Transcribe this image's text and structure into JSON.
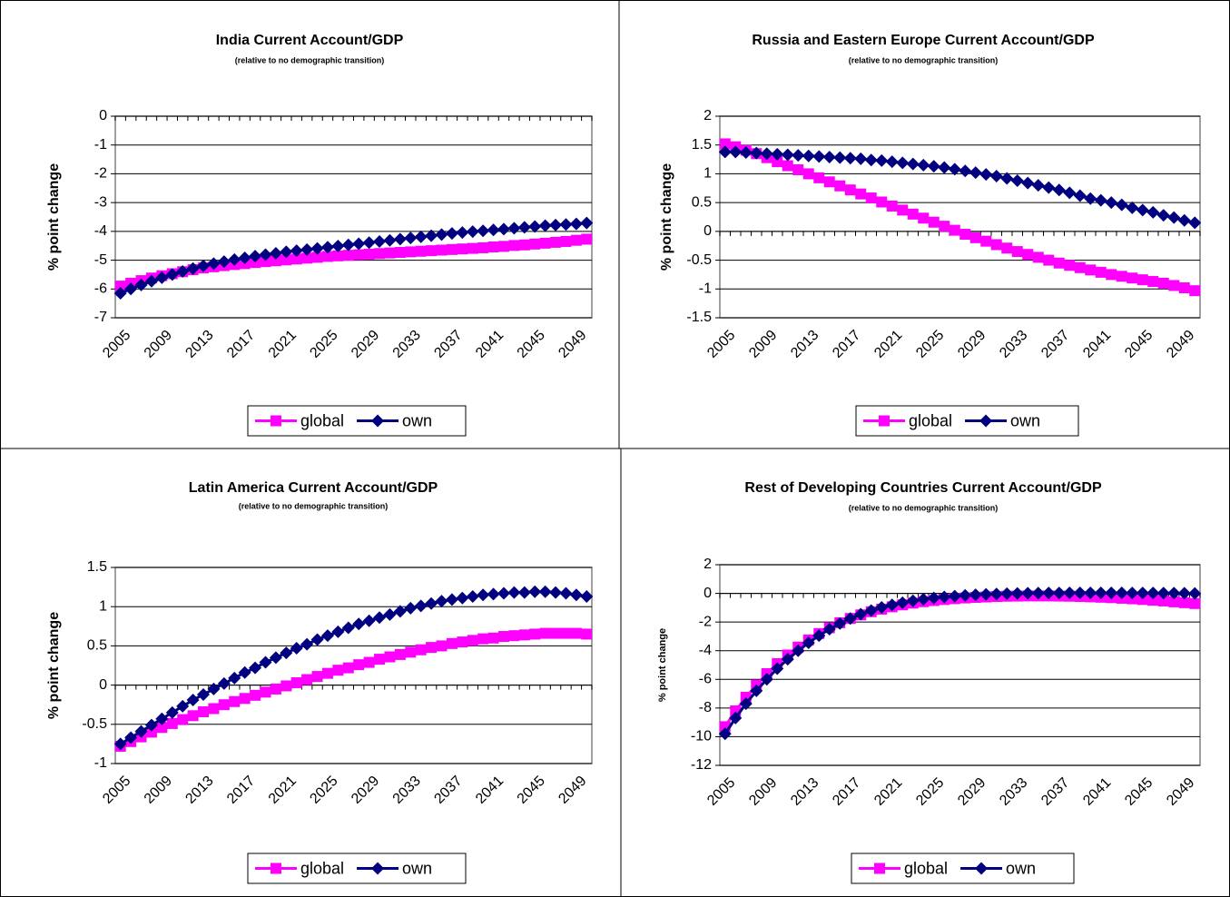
{
  "chart_data": [
    {
      "type": "line",
      "title": "India Current Account/GDP",
      "subtitle": "(relative to no demographic transition)",
      "y_label": "% point change",
      "categories": [
        "2005",
        null,
        null,
        null,
        "2009",
        null,
        null,
        null,
        "2013",
        null,
        null,
        null,
        "2017",
        null,
        null,
        null,
        "2021",
        null,
        null,
        null,
        "2025",
        null,
        null,
        null,
        "2029",
        null,
        null,
        null,
        "2033",
        null,
        null,
        null,
        "2037",
        null,
        null,
        null,
        "2041",
        null,
        null,
        null,
        "2045",
        null,
        null,
        null,
        "2049",
        null
      ],
      "ylim": [
        -7,
        0
      ],
      "yticks": [
        -7,
        -6,
        -5,
        -4,
        -3,
        -2,
        -1,
        0
      ],
      "grid": true,
      "legend": "bottom",
      "series": [
        {
          "name": "global",
          "color": "#FF00FF",
          "marker": "square",
          "values": [
            -5.9,
            -5.8,
            -5.71,
            -5.62,
            -5.54,
            -5.47,
            -5.4,
            -5.33,
            -5.27,
            -5.23,
            -5.19,
            -5.15,
            -5.12,
            -5.08,
            -5.05,
            -5.02,
            -4.99,
            -4.96,
            -4.93,
            -4.9,
            -4.87,
            -4.85,
            -4.83,
            -4.81,
            -4.79,
            -4.77,
            -4.75,
            -4.73,
            -4.71,
            -4.69,
            -4.67,
            -4.65,
            -4.63,
            -4.61,
            -4.59,
            -4.57,
            -4.54,
            -4.52,
            -4.49,
            -4.47,
            -4.44,
            -4.41,
            -4.38,
            -4.35,
            -4.31,
            -4.27
          ]
        },
        {
          "name": "own",
          "color": "#000080",
          "marker": "diamond",
          "values": [
            -6.15,
            -6.0,
            -5.86,
            -5.73,
            -5.61,
            -5.5,
            -5.39,
            -5.29,
            -5.2,
            -5.12,
            -5.05,
            -4.98,
            -4.92,
            -4.86,
            -4.81,
            -4.76,
            -4.71,
            -4.67,
            -4.63,
            -4.59,
            -4.55,
            -4.51,
            -4.47,
            -4.43,
            -4.39,
            -4.35,
            -4.31,
            -4.27,
            -4.23,
            -4.19,
            -4.15,
            -4.11,
            -4.07,
            -4.04,
            -4.01,
            -3.98,
            -3.95,
            -3.92,
            -3.89,
            -3.86,
            -3.83,
            -3.8,
            -3.78,
            -3.76,
            -3.74,
            -3.71
          ]
        }
      ]
    },
    {
      "type": "line",
      "title": "Russia and Eastern Europe Current Account/GDP",
      "subtitle": "(relative to no demographic transition)",
      "y_label": "% point change",
      "categories": [
        "2005",
        null,
        null,
        null,
        "2009",
        null,
        null,
        null,
        "2013",
        null,
        null,
        null,
        "2017",
        null,
        null,
        null,
        "2021",
        null,
        null,
        null,
        "2025",
        null,
        null,
        null,
        "2029",
        null,
        null,
        null,
        "2033",
        null,
        null,
        null,
        "2037",
        null,
        null,
        null,
        "2041",
        null,
        null,
        null,
        "2045",
        null,
        null,
        null,
        "2049",
        null
      ],
      "ylim": [
        -1.5,
        2
      ],
      "yticks": [
        -1.5,
        -1,
        -0.5,
        0,
        0.5,
        1,
        1.5,
        2
      ],
      "grid": true,
      "legend": "bottom",
      "series": [
        {
          "name": "global",
          "color": "#FF00FF",
          "marker": "square",
          "values": [
            1.52,
            1.47,
            1.41,
            1.35,
            1.28,
            1.21,
            1.14,
            1.07,
            1.0,
            0.93,
            0.86,
            0.79,
            0.72,
            0.65,
            0.58,
            0.51,
            0.44,
            0.37,
            0.3,
            0.23,
            0.16,
            0.09,
            0.02,
            -0.05,
            -0.11,
            -0.17,
            -0.23,
            -0.29,
            -0.35,
            -0.4,
            -0.45,
            -0.5,
            -0.55,
            -0.59,
            -0.63,
            -0.67,
            -0.71,
            -0.75,
            -0.78,
            -0.81,
            -0.84,
            -0.87,
            -0.9,
            -0.94,
            -0.98,
            -1.03
          ]
        },
        {
          "name": "own",
          "color": "#000080",
          "marker": "diamond",
          "values": [
            1.38,
            1.38,
            1.37,
            1.36,
            1.35,
            1.34,
            1.33,
            1.32,
            1.31,
            1.3,
            1.29,
            1.28,
            1.27,
            1.26,
            1.24,
            1.23,
            1.21,
            1.19,
            1.17,
            1.15,
            1.13,
            1.11,
            1.08,
            1.05,
            1.02,
            0.99,
            0.96,
            0.92,
            0.88,
            0.84,
            0.8,
            0.76,
            0.72,
            0.67,
            0.62,
            0.57,
            0.54,
            0.5,
            0.46,
            0.41,
            0.37,
            0.33,
            0.28,
            0.24,
            0.19,
            0.15
          ]
        }
      ]
    },
    {
      "type": "line",
      "title": "Latin America Current Account/GDP",
      "subtitle": "(relative to no demographic transition)",
      "y_label": "% point change",
      "categories": [
        "2005",
        null,
        null,
        null,
        "2009",
        null,
        null,
        null,
        "2013",
        null,
        null,
        null,
        "2017",
        null,
        null,
        null,
        "2021",
        null,
        null,
        null,
        "2025",
        null,
        null,
        null,
        "2029",
        null,
        null,
        null,
        "2033",
        null,
        null,
        null,
        "2037",
        null,
        null,
        null,
        "2041",
        null,
        null,
        null,
        "2045",
        null,
        null,
        null,
        "2049",
        null
      ],
      "ylim": [
        -1,
        1.5
      ],
      "yticks": [
        -1,
        -0.5,
        0,
        0.5,
        1,
        1.5
      ],
      "grid": true,
      "legend": "bottom",
      "series": [
        {
          "name": "global",
          "color": "#FF00FF",
          "marker": "square",
          "values": [
            -0.78,
            -0.72,
            -0.66,
            -0.6,
            -0.54,
            -0.49,
            -0.44,
            -0.39,
            -0.34,
            -0.3,
            -0.25,
            -0.21,
            -0.17,
            -0.13,
            -0.09,
            -0.05,
            -0.01,
            0.03,
            0.07,
            0.11,
            0.15,
            0.19,
            0.22,
            0.26,
            0.29,
            0.33,
            0.36,
            0.39,
            0.42,
            0.45,
            0.48,
            0.5,
            0.53,
            0.55,
            0.57,
            0.59,
            0.6,
            0.62,
            0.63,
            0.64,
            0.65,
            0.66,
            0.66,
            0.66,
            0.66,
            0.65
          ]
        },
        {
          "name": "own",
          "color": "#000080",
          "marker": "diamond",
          "values": [
            -0.75,
            -0.67,
            -0.59,
            -0.51,
            -0.43,
            -0.35,
            -0.27,
            -0.19,
            -0.12,
            -0.05,
            0.02,
            0.09,
            0.16,
            0.22,
            0.29,
            0.35,
            0.41,
            0.47,
            0.52,
            0.58,
            0.63,
            0.68,
            0.73,
            0.78,
            0.82,
            0.86,
            0.9,
            0.94,
            0.98,
            1.01,
            1.04,
            1.07,
            1.09,
            1.11,
            1.13,
            1.15,
            1.16,
            1.17,
            1.18,
            1.18,
            1.19,
            1.19,
            1.18,
            1.17,
            1.15,
            1.13
          ]
        }
      ]
    },
    {
      "type": "line",
      "title": "Rest of Developing Countries Current Account/GDP",
      "subtitle": "(relative to no demographic transition)",
      "y_label": "% point change",
      "categories": [
        "2005",
        null,
        null,
        null,
        "2009",
        null,
        null,
        null,
        "2013",
        null,
        null,
        null,
        "2017",
        null,
        null,
        null,
        "2021",
        null,
        null,
        null,
        "2025",
        null,
        null,
        null,
        "2029",
        null,
        null,
        null,
        "2033",
        null,
        null,
        null,
        "2037",
        null,
        null,
        null,
        "2041",
        null,
        null,
        null,
        "2045",
        null,
        null,
        null,
        "2049",
        null
      ],
      "ylim": [
        -12,
        2
      ],
      "yticks": [
        -12,
        -10,
        -8,
        -6,
        -4,
        -2,
        0,
        2
      ],
      "grid": true,
      "legend": "bottom",
      "series": [
        {
          "name": "global",
          "color": "#FF00FF",
          "marker": "square",
          "values": [
            -9.3,
            -8.2,
            -7.25,
            -6.4,
            -5.6,
            -4.9,
            -4.3,
            -3.75,
            -3.25,
            -2.8,
            -2.4,
            -2.05,
            -1.75,
            -1.5,
            -1.28,
            -1.1,
            -0.94,
            -0.8,
            -0.68,
            -0.58,
            -0.5,
            -0.43,
            -0.37,
            -0.32,
            -0.28,
            -0.25,
            -0.22,
            -0.2,
            -0.19,
            -0.18,
            -0.18,
            -0.18,
            -0.19,
            -0.2,
            -0.22,
            -0.24,
            -0.27,
            -0.3,
            -0.34,
            -0.38,
            -0.43,
            -0.48,
            -0.53,
            -0.59,
            -0.65,
            -0.71
          ]
        },
        {
          "name": "own",
          "color": "#000080",
          "marker": "diamond",
          "values": [
            -9.8,
            -8.7,
            -7.7,
            -6.8,
            -6.0,
            -5.25,
            -4.6,
            -4.0,
            -3.45,
            -2.95,
            -2.5,
            -2.1,
            -1.75,
            -1.45,
            -1.2,
            -0.98,
            -0.8,
            -0.65,
            -0.52,
            -0.41,
            -0.32,
            -0.25,
            -0.19,
            -0.14,
            -0.1,
            -0.07,
            -0.04,
            -0.02,
            0.0,
            0.01,
            0.02,
            0.03,
            0.03,
            0.04,
            0.04,
            0.04,
            0.04,
            0.04,
            0.04,
            0.03,
            0.03,
            0.03,
            0.02,
            0.02,
            0.01,
            0.0
          ]
        }
      ]
    }
  ]
}
